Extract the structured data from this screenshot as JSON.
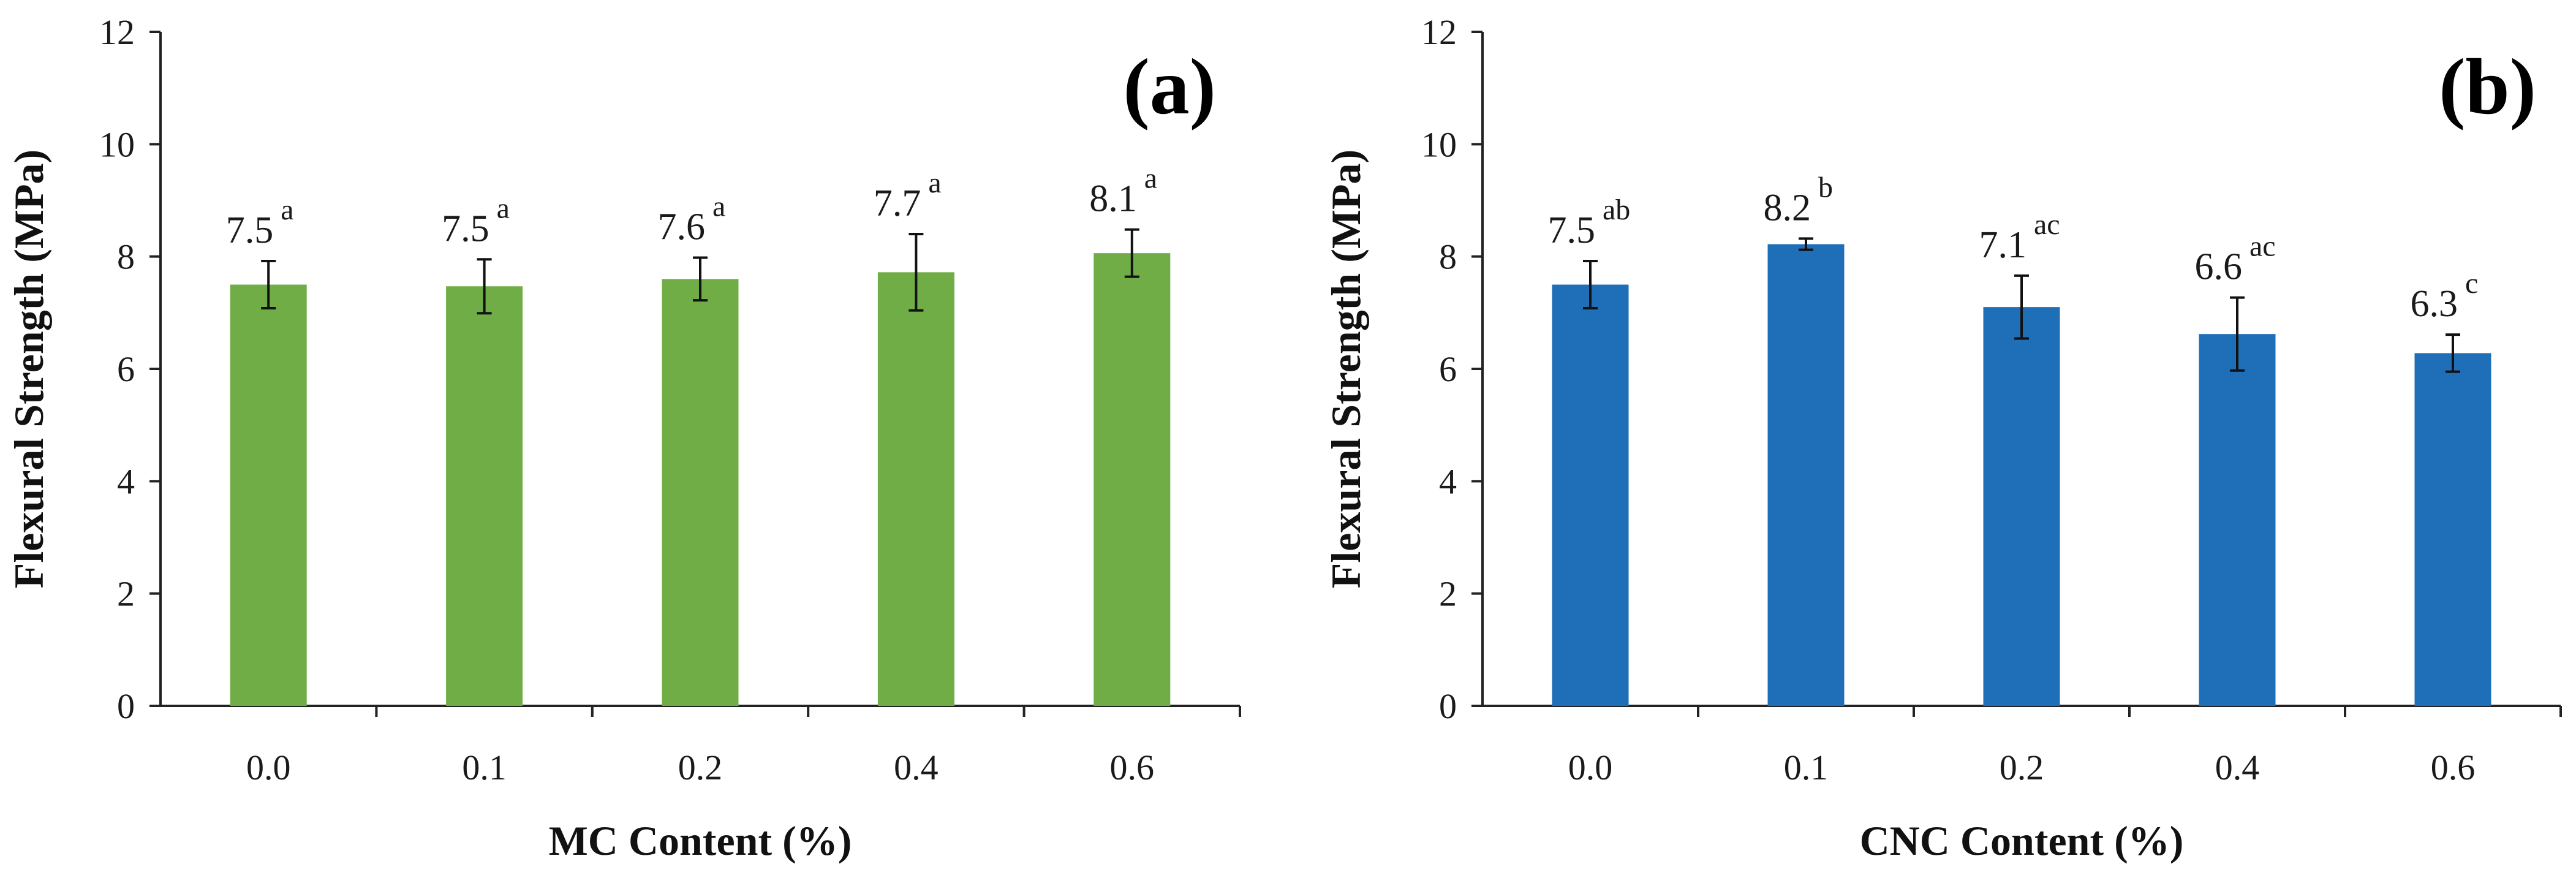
{
  "chart_data": [
    {
      "type": "bar",
      "panel_label": "(a)",
      "xlabel": "MC Content (%)",
      "ylabel": "Flexural Strength (MPa)",
      "categories": [
        "0.0",
        "0.1",
        "0.2",
        "0.4",
        "0.6"
      ],
      "values": [
        7.5,
        7.47,
        7.6,
        7.72,
        8.06
      ],
      "errors": [
        0.42,
        0.48,
        0.38,
        0.68,
        0.42
      ],
      "value_labels": [
        "7.5",
        "7.5",
        "7.6",
        "7.7",
        "8.1"
      ],
      "significance": [
        "a",
        "a",
        "a",
        "a",
        "a"
      ],
      "ylim": [
        0,
        12
      ],
      "yticks": [
        "0",
        "2",
        "4",
        "6",
        "8",
        "10",
        "12"
      ],
      "color": "#70ad47"
    },
    {
      "type": "bar",
      "panel_label": "(b)",
      "xlabel": "CNC Content (%)",
      "ylabel": "Flexural Strength (MPa)",
      "categories": [
        "0.0",
        "0.1",
        "0.2",
        "0.4",
        "0.6"
      ],
      "values": [
        7.5,
        8.22,
        7.1,
        6.62,
        6.28
      ],
      "errors": [
        0.42,
        0.1,
        0.56,
        0.65,
        0.33
      ],
      "value_labels": [
        "7.5",
        "8.2",
        "7.1",
        "6.6",
        "6.3"
      ],
      "significance": [
        "ab",
        "b",
        "ac",
        "ac",
        "c"
      ],
      "ylim": [
        0,
        12
      ],
      "yticks": [
        "0",
        "2",
        "4",
        "6",
        "8",
        "10",
        "12"
      ],
      "color": "#1f6fb8"
    }
  ]
}
